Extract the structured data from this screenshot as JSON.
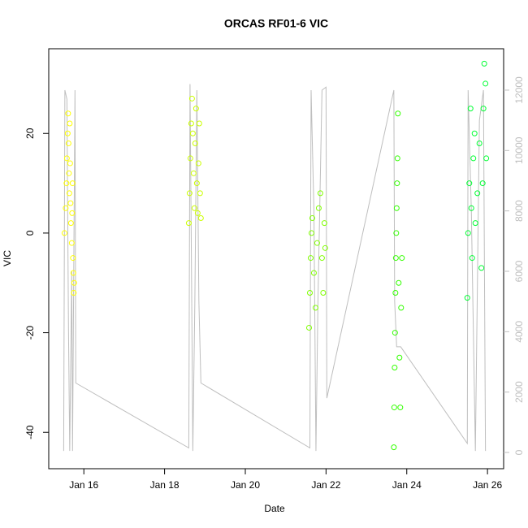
{
  "chart_data": {
    "type": "scatter",
    "title": "ORCAS RF01-6 VIC",
    "x_label": "Date",
    "y_label": "VIC",
    "xlim": [
      15.13,
      26.4
    ],
    "ylim": [
      -47.3,
      37
    ],
    "y2lim": [
      -538,
      13371
    ],
    "xticks": [
      {
        "value": 16,
        "label": "Jan 16"
      },
      {
        "value": 18,
        "label": "Jan 18"
      },
      {
        "value": 20,
        "label": "Jan 20"
      },
      {
        "value": 22,
        "label": "Jan 22"
      },
      {
        "value": 24,
        "label": "Jan 24"
      },
      {
        "value": 26,
        "label": "Jan 26"
      }
    ],
    "yticks": [
      -40,
      -20,
      0,
      20
    ],
    "y2ticks": [
      0,
      2000,
      4000,
      6000,
      8000,
      10000,
      12000
    ],
    "series": [
      {
        "color": "#bebebe",
        "axis": "y2",
        "mode": "line",
        "x": [
          15.5,
          15.53,
          15.58,
          15.62,
          15.65,
          15.7,
          15.72,
          15.78,
          15.8,
          18.6,
          18.63,
          18.67,
          18.7,
          18.75,
          18.8,
          18.85,
          18.9,
          21.6,
          21.63,
          21.7,
          21.75,
          21.8,
          21.9,
          22.0,
          22.02,
          23.68,
          23.7,
          23.75,
          23.85,
          25.5,
          25.52,
          25.6,
          25.7,
          25.8,
          25.9,
          25.95
        ],
        "values": [
          50,
          12000,
          11700,
          4000,
          50,
          6000,
          50,
          12000,
          2300,
          150,
          12200,
          5500,
          50,
          5000,
          12000,
          5000,
          2300,
          150,
          12000,
          8000,
          50,
          5000,
          12000,
          12100,
          1800,
          12000,
          5000,
          3500,
          3500,
          300,
          12000,
          8000,
          50,
          11000,
          12000,
          50
        ]
      },
      {
        "color": "#ffff00",
        "mode": "points",
        "x": [
          15.52,
          15.55,
          15.57,
          15.58,
          15.6,
          15.61,
          15.62,
          15.63,
          15.64,
          15.65,
          15.66,
          15.67,
          15.68,
          15.7,
          15.71,
          15.72,
          15.73,
          15.74,
          15.75,
          15.76
        ],
        "values": [
          0,
          5,
          10,
          15,
          20,
          24,
          18,
          12,
          8,
          22,
          14,
          6,
          2,
          -2,
          4,
          10,
          -5,
          -8,
          -12,
          -10
        ]
      },
      {
        "color": "#ccff00",
        "mode": "points",
        "x": [
          18.6,
          18.62,
          18.64,
          18.66,
          18.68,
          18.7,
          18.72,
          18.74,
          18.76,
          18.78,
          18.8,
          18.82,
          18.84,
          18.86,
          18.88,
          18.9
        ],
        "values": [
          2,
          8,
          15,
          22,
          27,
          20,
          12,
          5,
          18,
          25,
          10,
          4,
          14,
          22,
          8,
          3
        ]
      },
      {
        "color": "#80ff00",
        "mode": "points",
        "x": [
          21.58,
          21.6,
          21.62,
          21.64,
          21.66,
          21.7,
          21.74,
          21.78,
          21.82,
          21.86,
          21.9,
          21.93,
          21.96,
          21.98
        ],
        "values": [
          -19,
          -12,
          -5,
          0,
          3,
          -8,
          -15,
          -2,
          5,
          8,
          -5,
          -12,
          2,
          -3
        ]
      },
      {
        "color": "#33ff00",
        "mode": "points",
        "x": [
          23.68,
          23.69,
          23.7,
          23.71,
          23.72,
          23.73,
          23.74,
          23.75,
          23.76,
          23.77,
          23.78,
          23.8,
          23.82,
          23.84,
          23.86,
          23.88
        ],
        "values": [
          -43,
          -35,
          -27,
          -20,
          -12,
          -5,
          0,
          5,
          10,
          15,
          24,
          -10,
          -25,
          -35,
          -15,
          -5
        ]
      },
      {
        "color": "#00ff33",
        "mode": "points",
        "x": [
          25.5,
          25.52,
          25.55,
          25.58,
          25.6,
          25.62,
          25.65,
          25.68,
          25.7,
          25.75,
          25.8,
          25.85,
          25.88,
          25.9,
          25.92,
          25.95,
          25.97
        ],
        "values": [
          -13,
          0,
          10,
          25,
          5,
          -5,
          15,
          20,
          2,
          8,
          18,
          -7,
          10,
          25,
          34,
          30,
          15
        ]
      }
    ]
  }
}
